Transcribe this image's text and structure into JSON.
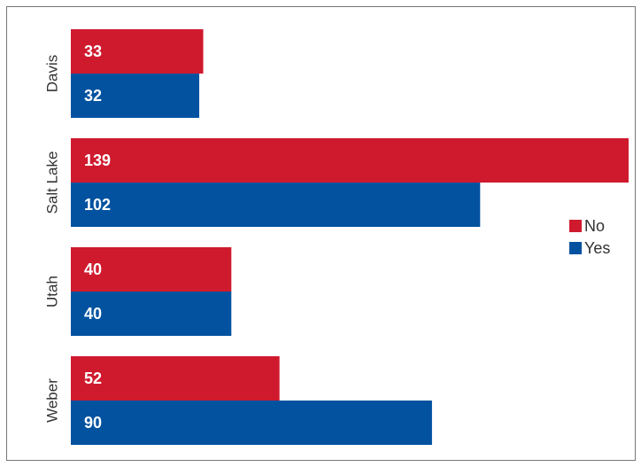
{
  "chart_data": {
    "type": "bar",
    "orientation": "horizontal",
    "categories": [
      "Davis",
      "Salt Lake",
      "Utah",
      "Weber"
    ],
    "series": [
      {
        "name": "No",
        "color": "#cf1a2e",
        "values": [
          33,
          139,
          40,
          52
        ]
      },
      {
        "name": "Yes",
        "color": "#0252a0",
        "values": [
          32,
          102,
          40,
          90
        ]
      }
    ],
    "legend": "right"
  }
}
